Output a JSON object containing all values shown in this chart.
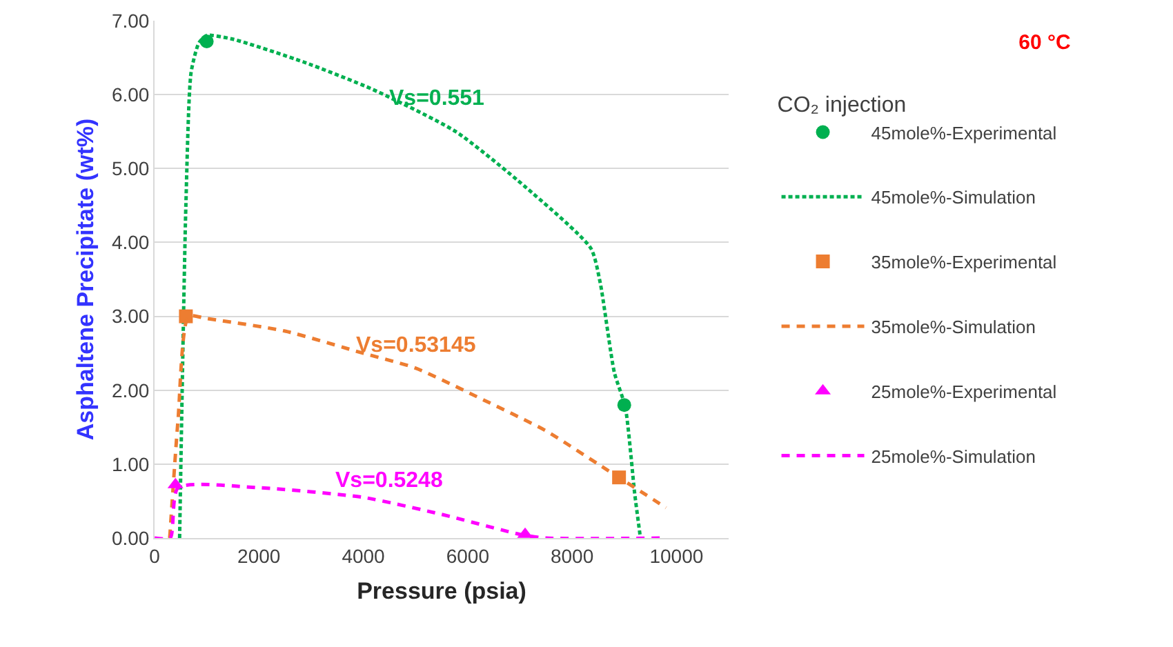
{
  "chart_data": {
    "type": "scatter",
    "title": "60 °C",
    "legend_title": "CO₂ injection",
    "xlabel": "Pressure (psia)",
    "ylabel": "Asphaltene Precipitate (wt%)",
    "xlim": [
      0,
      11000
    ],
    "xticks": [
      0,
      2000,
      4000,
      6000,
      8000,
      10000
    ],
    "ylim": [
      0,
      7
    ],
    "yticks": [
      {
        "value": 0,
        "label": "0.00"
      },
      {
        "value": 1,
        "label": "1.00"
      },
      {
        "value": 2,
        "label": "2.00"
      },
      {
        "value": 3,
        "label": "3.00"
      },
      {
        "value": 4,
        "label": "4.00"
      },
      {
        "value": 5,
        "label": "5.00"
      },
      {
        "value": 6,
        "label": "6.00"
      },
      {
        "value": 7,
        "label": "7.00"
      }
    ],
    "grid": "y",
    "legend": "right",
    "series": [
      {
        "name": "45mole%-Experimental",
        "type": "scatter",
        "marker": "circle",
        "color": "#00b050",
        "x": [
          1000,
          9000
        ],
        "values": [
          6.72,
          1.8
        ]
      },
      {
        "name": "45mole%-Simulation",
        "type": "line",
        "line_style": "dotted",
        "color": "#00b050",
        "x": [
          480,
          600,
          700,
          850,
          1000,
          1500,
          2860,
          4180,
          5770,
          7090,
          8360,
          8540,
          8810,
          9020,
          9200,
          9310
        ],
        "values": [
          0,
          4.5,
          6.3,
          6.7,
          6.8,
          6.75,
          6.44,
          6.07,
          5.5,
          4.76,
          3.92,
          3.45,
          2.24,
          1.77,
          0.6,
          0
        ]
      },
      {
        "name": "35mole%-Experimental",
        "type": "scatter",
        "marker": "square",
        "color": "#ed7d31",
        "x": [
          600,
          8900
        ],
        "values": [
          3.0,
          0.82
        ]
      },
      {
        "name": "35mole%-Simulation",
        "type": "line",
        "line_style": "dashed",
        "color": "#ed7d31",
        "x": [
          290,
          450,
          650,
          1000,
          2500,
          4000,
          5000,
          6300,
          7500,
          8500,
          9800
        ],
        "values": [
          0,
          1.6,
          3.0,
          2.97,
          2.8,
          2.5,
          2.3,
          1.87,
          1.45,
          1.0,
          0.41
        ]
      },
      {
        "name": "25mole%-Experimental",
        "type": "scatter",
        "marker": "triangle",
        "color": "#ff00ff",
        "x": [
          400,
          7100
        ],
        "values": [
          0.72,
          0.05
        ]
      },
      {
        "name": "25mole%-Simulation",
        "type": "line",
        "line_style": "dashed",
        "color": "#ff00ff",
        "x": [
          0,
          300,
          450,
          2000,
          4000,
          5500,
          7000,
          7500,
          9800
        ],
        "values": [
          0,
          0,
          0.68,
          0.68,
          0.55,
          0.32,
          0.05,
          0,
          0
        ]
      }
    ],
    "annotations": [
      {
        "text": "Vs=0.551",
        "x": 5400,
        "y": 5.63
      },
      {
        "text": "Vs=0.53145",
        "x": 5000,
        "y": 2.3
      },
      {
        "text": "Vs=0.5248",
        "x": 4500,
        "y": 0.47
      }
    ]
  }
}
